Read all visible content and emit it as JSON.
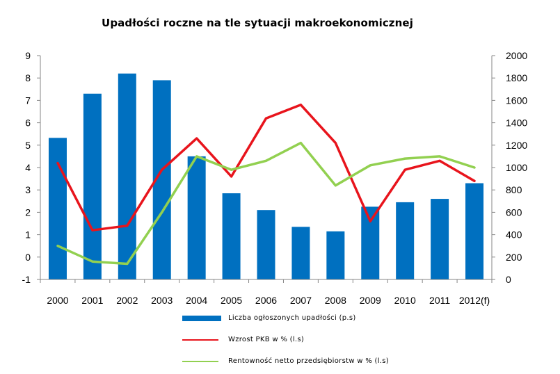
{
  "chart_data": {
    "type": "bar+line",
    "title": "Upadłości roczne na tle sytuacji makroekonomicznej",
    "categories": [
      "2000",
      "2001",
      "2002",
      "2003",
      "2004",
      "2005",
      "2006",
      "2007",
      "2008",
      "2009",
      "2010",
      "2011",
      "2012(f)"
    ],
    "y_left": {
      "min": -1,
      "max": 9,
      "ticks": [
        "-1",
        "0",
        "1",
        "2",
        "3",
        "4",
        "5",
        "6",
        "7",
        "8",
        "9"
      ]
    },
    "y_right": {
      "min": 0,
      "max": 2000,
      "ticks": [
        "0",
        "200",
        "400",
        "600",
        "800",
        "1000",
        "1200",
        "1400",
        "1600",
        "1800",
        "2000"
      ]
    },
    "series": [
      {
        "name": "Liczba ogłoszonych upadłości (p.s)",
        "kind": "bar",
        "axis": "right",
        "color": "#0070c0",
        "values": [
          1265,
          1660,
          1840,
          1780,
          1100,
          770,
          620,
          470,
          430,
          650,
          690,
          720,
          860
        ]
      },
      {
        "name": "Wzrost PKB w % (l.s)",
        "kind": "line",
        "axis": "left",
        "color": "#e8141c",
        "values": [
          4.2,
          1.2,
          1.4,
          3.9,
          5.3,
          3.6,
          6.2,
          6.8,
          5.1,
          1.6,
          3.9,
          4.3,
          3.4
        ]
      },
      {
        "name": "Rentowność netto przedsiębiorstw w % (l.s)",
        "kind": "line",
        "axis": "left",
        "color": "#92d050",
        "values": [
          0.5,
          -0.2,
          -0.3,
          2.0,
          4.5,
          3.9,
          4.3,
          5.1,
          3.2,
          4.1,
          4.4,
          4.5,
          4.0
        ]
      }
    ],
    "grid": false,
    "legend_position": "bottom"
  }
}
